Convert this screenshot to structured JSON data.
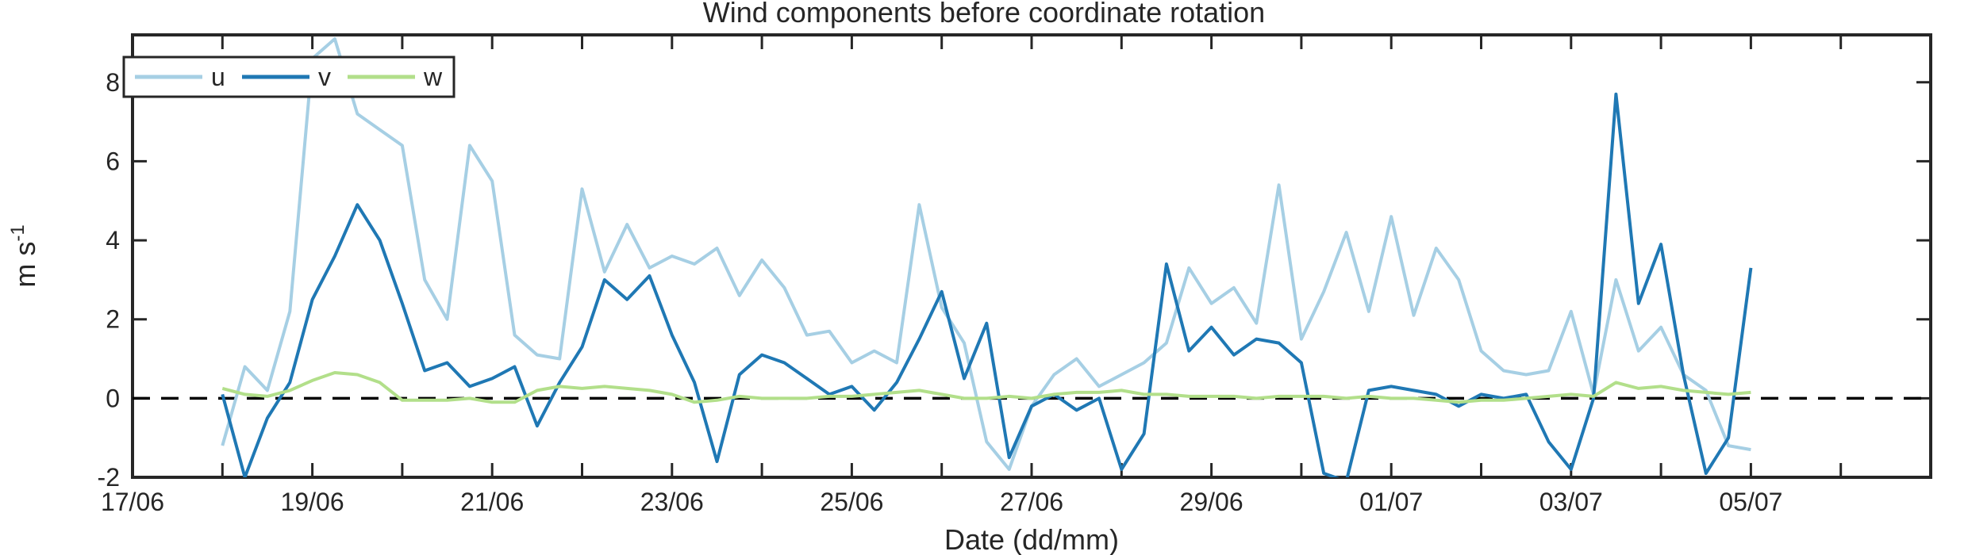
{
  "chart_data": {
    "type": "line",
    "title": "Wind components before coordinate rotation",
    "xlabel": "Date (dd/mm)",
    "ylabel": "m s",
    "ylabel_superscript": "-1",
    "x_ticks": [
      "17/06",
      "19/06",
      "21/06",
      "23/06",
      "25/06",
      "27/06",
      "29/06",
      "01/07",
      "03/07",
      "05/07"
    ],
    "xlim": [
      "2016-06-17",
      "2016-07-07"
    ],
    "y_ticks": [
      "-2",
      "0",
      "2",
      "4",
      "6",
      "8"
    ],
    "ylim": [
      -2,
      9.2
    ],
    "grid": false,
    "legend_position": "top-left",
    "reference_line": {
      "y": 0,
      "style": "dashed",
      "color": "#000000"
    },
    "series": [
      {
        "name": "u",
        "color": "#a6cfe4",
        "x": [
          "2016-06-18T00:00",
          "2016-06-18T06:00",
          "2016-06-18T12:00",
          "2016-06-18T18:00",
          "2016-06-19T00:00",
          "2016-06-19T06:00",
          "2016-06-19T12:00",
          "2016-06-19T18:00",
          "2016-06-20T00:00",
          "2016-06-20T06:00",
          "2016-06-20T12:00",
          "2016-06-20T18:00",
          "2016-06-21T00:00",
          "2016-06-21T06:00",
          "2016-06-21T12:00",
          "2016-06-21T18:00",
          "2016-06-22T00:00",
          "2016-06-22T06:00",
          "2016-06-22T12:00",
          "2016-06-22T18:00",
          "2016-06-23T00:00",
          "2016-06-23T06:00",
          "2016-06-23T12:00",
          "2016-06-23T18:00",
          "2016-06-24T00:00",
          "2016-06-24T06:00",
          "2016-06-24T12:00",
          "2016-06-24T18:00",
          "2016-06-25T00:00",
          "2016-06-25T06:00",
          "2016-06-25T12:00",
          "2016-06-25T18:00",
          "2016-06-26T00:00",
          "2016-06-26T06:00",
          "2016-06-26T12:00",
          "2016-06-26T18:00",
          "2016-06-27T00:00",
          "2016-06-27T06:00",
          "2016-06-27T12:00",
          "2016-06-27T18:00",
          "2016-06-28T00:00",
          "2016-06-28T06:00",
          "2016-06-28T12:00",
          "2016-06-28T18:00",
          "2016-06-29T00:00",
          "2016-06-29T06:00",
          "2016-06-29T12:00",
          "2016-06-29T18:00",
          "2016-06-30T00:00",
          "2016-06-30T06:00",
          "2016-06-30T12:00",
          "2016-06-30T18:00",
          "2016-07-01T00:00",
          "2016-07-01T06:00",
          "2016-07-01T12:00",
          "2016-07-01T18:00",
          "2016-07-02T00:00",
          "2016-07-02T06:00",
          "2016-07-02T12:00",
          "2016-07-02T18:00",
          "2016-07-03T00:00",
          "2016-07-03T06:00",
          "2016-07-03T12:00",
          "2016-07-03T18:00",
          "2016-07-04T00:00",
          "2016-07-04T06:00",
          "2016-07-04T12:00",
          "2016-07-04T18:00",
          "2016-07-05T00:00"
        ],
        "values": [
          -1.2,
          0.8,
          0.2,
          2.2,
          8.6,
          9.1,
          7.2,
          6.8,
          6.4,
          3.0,
          2.0,
          6.4,
          5.5,
          1.6,
          1.1,
          1.0,
          5.3,
          3.2,
          4.4,
          3.3,
          3.6,
          3.4,
          3.8,
          2.6,
          3.5,
          2.8,
          1.6,
          1.7,
          0.9,
          1.2,
          0.9,
          4.9,
          2.3,
          1.4,
          -1.1,
          -1.8,
          -0.2,
          0.6,
          1.0,
          0.3,
          0.6,
          0.9,
          1.4,
          3.3,
          2.4,
          2.8,
          1.9,
          5.4,
          1.5,
          2.7,
          4.2,
          2.2,
          4.6,
          2.1,
          3.8,
          3.0,
          1.2,
          0.7,
          0.6,
          0.7,
          2.2,
          0.1,
          3.0,
          1.2,
          1.8,
          0.6,
          0.2,
          -1.2,
          -1.3
        ]
      },
      {
        "name": "v",
        "color": "#1f78b4",
        "x": [
          "2016-06-18T00:00",
          "2016-06-18T06:00",
          "2016-06-18T12:00",
          "2016-06-18T18:00",
          "2016-06-19T00:00",
          "2016-06-19T06:00",
          "2016-06-19T12:00",
          "2016-06-19T18:00",
          "2016-06-20T00:00",
          "2016-06-20T06:00",
          "2016-06-20T12:00",
          "2016-06-20T18:00",
          "2016-06-21T00:00",
          "2016-06-21T06:00",
          "2016-06-21T12:00",
          "2016-06-21T18:00",
          "2016-06-22T00:00",
          "2016-06-22T06:00",
          "2016-06-22T12:00",
          "2016-06-22T18:00",
          "2016-06-23T00:00",
          "2016-06-23T06:00",
          "2016-06-23T12:00",
          "2016-06-23T18:00",
          "2016-06-24T00:00",
          "2016-06-24T06:00",
          "2016-06-24T12:00",
          "2016-06-24T18:00",
          "2016-06-25T00:00",
          "2016-06-25T06:00",
          "2016-06-25T12:00",
          "2016-06-25T18:00",
          "2016-06-26T00:00",
          "2016-06-26T06:00",
          "2016-06-26T12:00",
          "2016-06-26T18:00",
          "2016-06-27T00:00",
          "2016-06-27T06:00",
          "2016-06-27T12:00",
          "2016-06-27T18:00",
          "2016-06-28T00:00",
          "2016-06-28T06:00",
          "2016-06-28T12:00",
          "2016-06-28T18:00",
          "2016-06-29T00:00",
          "2016-06-29T06:00",
          "2016-06-29T12:00",
          "2016-06-29T18:00",
          "2016-06-30T00:00",
          "2016-06-30T06:00",
          "2016-06-30T12:00",
          "2016-06-30T18:00",
          "2016-07-01T00:00",
          "2016-07-01T06:00",
          "2016-07-01T12:00",
          "2016-07-01T18:00",
          "2016-07-02T00:00",
          "2016-07-02T06:00",
          "2016-07-02T12:00",
          "2016-07-02T18:00",
          "2016-07-03T00:00",
          "2016-07-03T06:00",
          "2016-07-03T12:00",
          "2016-07-03T18:00",
          "2016-07-04T00:00",
          "2016-07-04T06:00",
          "2016-07-04T12:00",
          "2016-07-04T18:00",
          "2016-07-05T00:00"
        ],
        "values": [
          0.1,
          -2.0,
          -0.5,
          0.4,
          2.5,
          3.6,
          4.9,
          4.0,
          2.4,
          0.7,
          0.9,
          0.3,
          0.5,
          0.8,
          -0.7,
          0.4,
          1.3,
          3.0,
          2.5,
          3.1,
          1.6,
          0.4,
          -1.6,
          0.6,
          1.1,
          0.9,
          0.5,
          0.1,
          0.3,
          -0.3,
          0.4,
          1.5,
          2.7,
          0.5,
          1.9,
          -1.5,
          -0.2,
          0.1,
          -0.3,
          0.0,
          -1.8,
          -0.9,
          3.4,
          1.2,
          1.8,
          1.1,
          1.5,
          1.4,
          0.9,
          -1.9,
          -2.1,
          0.2,
          0.3,
          0.2,
          0.1,
          -0.2,
          0.1,
          0.0,
          0.1,
          -1.1,
          -1.8,
          0.0,
          7.7,
          2.4,
          3.9,
          0.6,
          -1.9,
          -1.0,
          3.3
        ]
      },
      {
        "name": "w",
        "color": "#b2df8a",
        "x": [
          "2016-06-18T00:00",
          "2016-06-18T06:00",
          "2016-06-18T12:00",
          "2016-06-18T18:00",
          "2016-06-19T00:00",
          "2016-06-19T06:00",
          "2016-06-19T12:00",
          "2016-06-19T18:00",
          "2016-06-20T00:00",
          "2016-06-20T06:00",
          "2016-06-20T12:00",
          "2016-06-20T18:00",
          "2016-06-21T00:00",
          "2016-06-21T06:00",
          "2016-06-21T12:00",
          "2016-06-21T18:00",
          "2016-06-22T00:00",
          "2016-06-22T06:00",
          "2016-06-22T12:00",
          "2016-06-22T18:00",
          "2016-06-23T00:00",
          "2016-06-23T06:00",
          "2016-06-23T12:00",
          "2016-06-23T18:00",
          "2016-06-24T00:00",
          "2016-06-24T06:00",
          "2016-06-24T12:00",
          "2016-06-24T18:00",
          "2016-06-25T00:00",
          "2016-06-25T06:00",
          "2016-06-25T12:00",
          "2016-06-25T18:00",
          "2016-06-26T00:00",
          "2016-06-26T06:00",
          "2016-06-26T12:00",
          "2016-06-26T18:00",
          "2016-06-27T00:00",
          "2016-06-27T06:00",
          "2016-06-27T12:00",
          "2016-06-27T18:00",
          "2016-06-28T00:00",
          "2016-06-28T06:00",
          "2016-06-28T12:00",
          "2016-06-28T18:00",
          "2016-06-29T00:00",
          "2016-06-29T06:00",
          "2016-06-29T12:00",
          "2016-06-29T18:00",
          "2016-06-30T00:00",
          "2016-06-30T06:00",
          "2016-06-30T12:00",
          "2016-06-30T18:00",
          "2016-07-01T00:00",
          "2016-07-01T06:00",
          "2016-07-01T12:00",
          "2016-07-01T18:00",
          "2016-07-02T00:00",
          "2016-07-02T06:00",
          "2016-07-02T12:00",
          "2016-07-02T18:00",
          "2016-07-03T00:00",
          "2016-07-03T06:00",
          "2016-07-03T12:00",
          "2016-07-03T18:00",
          "2016-07-04T00:00",
          "2016-07-04T06:00",
          "2016-07-04T12:00",
          "2016-07-04T18:00",
          "2016-07-05T00:00"
        ],
        "values": [
          0.25,
          0.1,
          0.05,
          0.2,
          0.45,
          0.65,
          0.6,
          0.4,
          -0.05,
          -0.05,
          -0.05,
          0.0,
          -0.1,
          -0.1,
          0.2,
          0.3,
          0.25,
          0.3,
          0.25,
          0.2,
          0.1,
          -0.1,
          -0.05,
          0.05,
          0.0,
          0.0,
          0.0,
          0.05,
          0.05,
          0.1,
          0.15,
          0.2,
          0.1,
          0.0,
          0.0,
          0.05,
          0.0,
          0.1,
          0.15,
          0.15,
          0.2,
          0.1,
          0.1,
          0.05,
          0.05,
          0.05,
          0.0,
          0.05,
          0.05,
          0.05,
          0.0,
          0.05,
          0.0,
          0.0,
          -0.05,
          -0.1,
          -0.05,
          -0.05,
          0.0,
          0.05,
          0.1,
          0.05,
          0.4,
          0.25,
          0.3,
          0.2,
          0.15,
          0.1,
          0.15
        ]
      }
    ]
  }
}
